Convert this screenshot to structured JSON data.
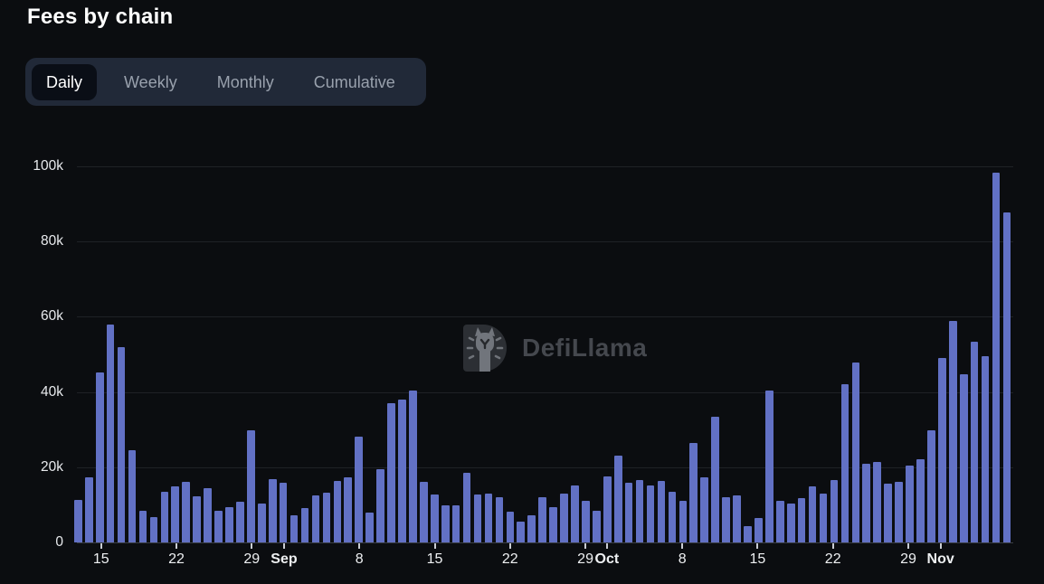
{
  "title": "Fees by chain",
  "tabs": {
    "items": [
      {
        "label": "Daily",
        "active": true
      },
      {
        "label": "Weekly",
        "active": false
      },
      {
        "label": "Monthly",
        "active": false
      },
      {
        "label": "Cumulative",
        "active": false
      }
    ]
  },
  "watermark": {
    "text": "DefiLlama"
  },
  "chart_data": {
    "type": "bar",
    "title": "Fees by chain",
    "xlabel": "",
    "ylabel": "",
    "ylim": [
      0,
      100000
    ],
    "grid": true,
    "legend": false,
    "bar_color": "#6271c5",
    "grid_color": "#1f2226",
    "axis_color": "#3b3f45",
    "label_color": "#e8eaed",
    "yticks": [
      {
        "label": "0",
        "value": 0
      },
      {
        "label": "20k",
        "value": 20000
      },
      {
        "label": "40k",
        "value": 40000
      },
      {
        "label": "60k",
        "value": 60000
      },
      {
        "label": "80k",
        "value": 80000
      },
      {
        "label": "100k",
        "value": 100000
      }
    ],
    "xticks": [
      {
        "label": "15",
        "index": 2,
        "bold": false
      },
      {
        "label": "22",
        "index": 9,
        "bold": false
      },
      {
        "label": "29",
        "index": 16,
        "bold": false
      },
      {
        "label": "Sep",
        "index": 19,
        "bold": true
      },
      {
        "label": "8",
        "index": 26,
        "bold": false
      },
      {
        "label": "15",
        "index": 33,
        "bold": false
      },
      {
        "label": "22",
        "index": 40,
        "bold": false
      },
      {
        "label": "29",
        "index": 47,
        "bold": false
      },
      {
        "label": "Oct",
        "index": 49,
        "bold": true
      },
      {
        "label": "8",
        "index": 56,
        "bold": false
      },
      {
        "label": "15",
        "index": 63,
        "bold": false
      },
      {
        "label": "22",
        "index": 70,
        "bold": false
      },
      {
        "label": "29",
        "index": 77,
        "bold": false
      },
      {
        "label": "Nov",
        "index": 80,
        "bold": true
      }
    ],
    "x": [
      "Aug 13",
      "Aug 14",
      "Aug 15",
      "Aug 16",
      "Aug 17",
      "Aug 18",
      "Aug 19",
      "Aug 20",
      "Aug 21",
      "Aug 22",
      "Aug 23",
      "Aug 24",
      "Aug 25",
      "Aug 26",
      "Aug 27",
      "Aug 28",
      "Aug 29",
      "Aug 30",
      "Aug 31",
      "Sep 1",
      "Sep 2",
      "Sep 3",
      "Sep 4",
      "Sep 5",
      "Sep 6",
      "Sep 7",
      "Sep 8",
      "Sep 9",
      "Sep 10",
      "Sep 11",
      "Sep 12",
      "Sep 13",
      "Sep 14",
      "Sep 15",
      "Sep 16",
      "Sep 17",
      "Sep 18",
      "Sep 19",
      "Sep 20",
      "Sep 21",
      "Sep 22",
      "Sep 23",
      "Sep 24",
      "Sep 25",
      "Sep 26",
      "Sep 27",
      "Sep 28",
      "Sep 29",
      "Sep 30",
      "Oct 1",
      "Oct 2",
      "Oct 3",
      "Oct 4",
      "Oct 5",
      "Oct 6",
      "Oct 7",
      "Oct 8",
      "Oct 9",
      "Oct 10",
      "Oct 11",
      "Oct 12",
      "Oct 13",
      "Oct 14",
      "Oct 15",
      "Oct 16",
      "Oct 17",
      "Oct 18",
      "Oct 19",
      "Oct 20",
      "Oct 21",
      "Oct 22",
      "Oct 23",
      "Oct 24",
      "Oct 25",
      "Oct 26",
      "Oct 27",
      "Oct 28",
      "Oct 29",
      "Oct 30",
      "Oct 31",
      "Nov 1",
      "Nov 2",
      "Nov 3",
      "Nov 4",
      "Nov 5",
      "Nov 6",
      "Nov 7"
    ],
    "values": [
      11400,
      17300,
      45200,
      58000,
      52000,
      24600,
      8400,
      6800,
      13400,
      14800,
      16200,
      12200,
      14400,
      8400,
      9400,
      10800,
      29700,
      10300,
      16900,
      15900,
      7300,
      9100,
      12500,
      13200,
      16400,
      17400,
      28200,
      7900,
      19500,
      37100,
      37900,
      40300,
      16000,
      12700,
      9900,
      9900,
      18500,
      12700,
      12900,
      12100,
      8200,
      5500,
      7300,
      12100,
      9300,
      12900,
      15100,
      11100,
      8300,
      17500,
      23000,
      15900,
      16700,
      15200,
      16300,
      13500,
      11000,
      26400,
      17300,
      33500,
      12100,
      12500,
      4300,
      6500,
      40300,
      11000,
      10400,
      11900,
      14900,
      13000,
      16600,
      42000,
      47900,
      20900,
      21400,
      15600,
      16200,
      20400,
      22200,
      29900,
      49000,
      58800,
      44800,
      53300,
      49600,
      98400,
      87700
    ]
  }
}
